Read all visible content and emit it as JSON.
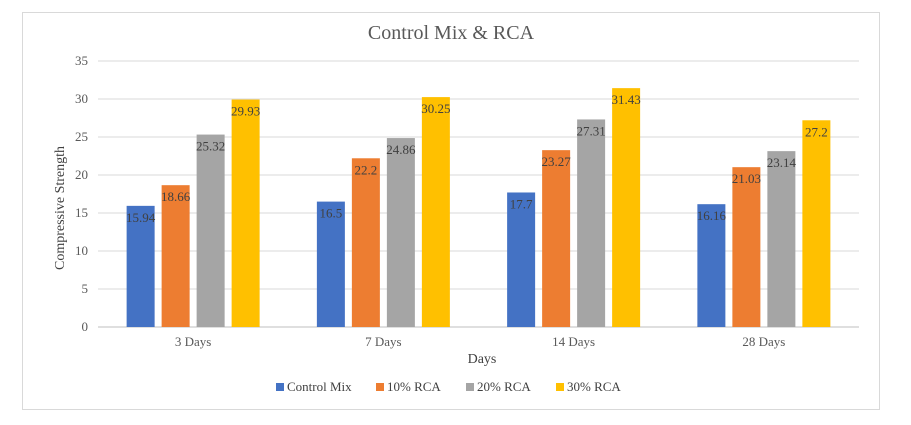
{
  "chart_data": {
    "type": "bar",
    "title": "Control Mix & RCA",
    "xlabel": "Days",
    "ylabel": "Compressive Strength",
    "categories": [
      "3 Days",
      "7 Days",
      "14 Days",
      "28 Days"
    ],
    "ylim": [
      0,
      35
    ],
    "yticks": [
      0,
      5,
      10,
      15,
      20,
      25,
      30,
      35
    ],
    "grid": true,
    "legend_position": "bottom",
    "series": [
      {
        "name": "Control Mix",
        "color": "#4472c4",
        "values": [
          15.94,
          16.5,
          17.7,
          16.16
        ]
      },
      {
        "name": "10% RCA",
        "color": "#ed7d31",
        "values": [
          18.66,
          22.2,
          23.27,
          21.03
        ]
      },
      {
        "name": "20% RCA",
        "color": "#a5a5a5",
        "values": [
          25.32,
          24.86,
          27.31,
          23.14
        ]
      },
      {
        "name": "30% RCA",
        "color": "#ffc000",
        "values": [
          29.93,
          30.25,
          31.43,
          27.2
        ]
      }
    ],
    "data_labels": [
      [
        "15.94",
        "16.5",
        "17.7",
        "16.16"
      ],
      [
        "18.66",
        "22.2",
        "23.27",
        "21.03"
      ],
      [
        "25.32",
        "24.86",
        "27.31",
        "23.14"
      ],
      [
        "29.93",
        "30.25",
        "31.43",
        "27.2"
      ]
    ]
  }
}
